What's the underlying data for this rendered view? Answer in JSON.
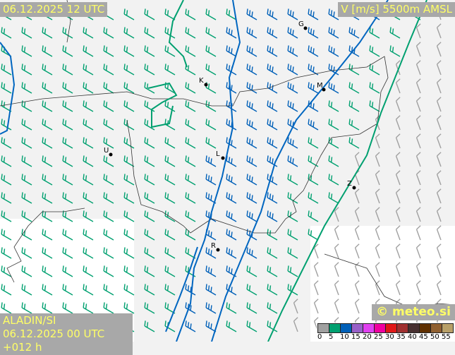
{
  "header": {
    "valid_time": "06.12.2025 12 UTC",
    "parameter": "V [m/s] 5500m AMSL"
  },
  "footer": {
    "model": "ALADIN/SI",
    "run": "06.12.2025 00 UTC +012 h",
    "copyright": "© meteo.si"
  },
  "legend": {
    "ticks": [
      "0",
      "5",
      "10",
      "15",
      "20",
      "25",
      "30",
      "35",
      "40",
      "45",
      "50",
      "55"
    ],
    "colors": [
      "#a0a0a0",
      "#00a070",
      "#0060b8",
      "#9860c8",
      "#e040f0",
      "#f000a0",
      "#e01818",
      "#a03030",
      "#483030",
      "#603000",
      "#906030",
      "#b8a068"
    ]
  },
  "cities": [
    {
      "label": "G"
    },
    {
      "label": "K"
    },
    {
      "label": "M"
    },
    {
      "label": "U"
    },
    {
      "label": "L"
    },
    {
      "label": "Z"
    },
    {
      "label": "R"
    }
  ],
  "barb_colors": {
    "slow": "#a0a0a0",
    "moderate": "#00a070",
    "strong": "#0060b8"
  }
}
